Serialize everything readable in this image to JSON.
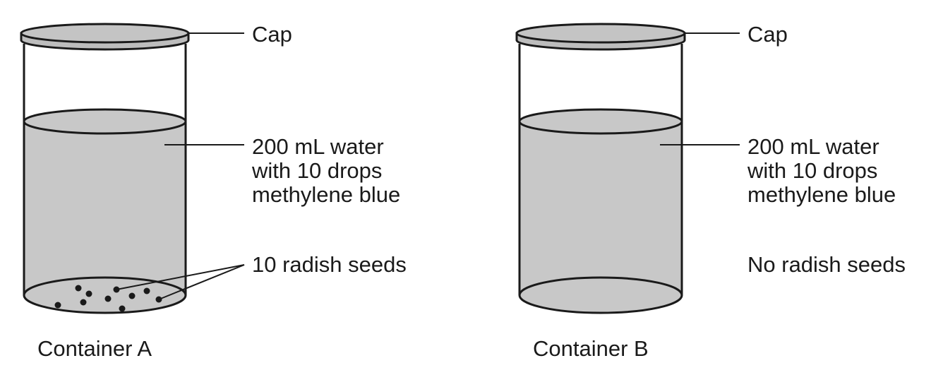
{
  "containers": [
    {
      "title": "Container A",
      "cap_label": "Cap",
      "solution_label": {
        "line1": "200 mL water",
        "line2": "with 10 drops",
        "line3": "methylene blue"
      },
      "seeds_label": "10 radish seeds",
      "seed_count": 10
    },
    {
      "title": "Container B",
      "cap_label": "Cap",
      "solution_label": {
        "line1": "200 mL water",
        "line2": "with 10 drops",
        "line3": "methylene blue"
      },
      "seeds_label": "No radish seeds",
      "seed_count": 0
    }
  ],
  "colors": {
    "liquid": "#c8c8c8",
    "outline": "#1a1a1a",
    "cap": "#c0c0c0",
    "seed": "#1a1a1a"
  }
}
